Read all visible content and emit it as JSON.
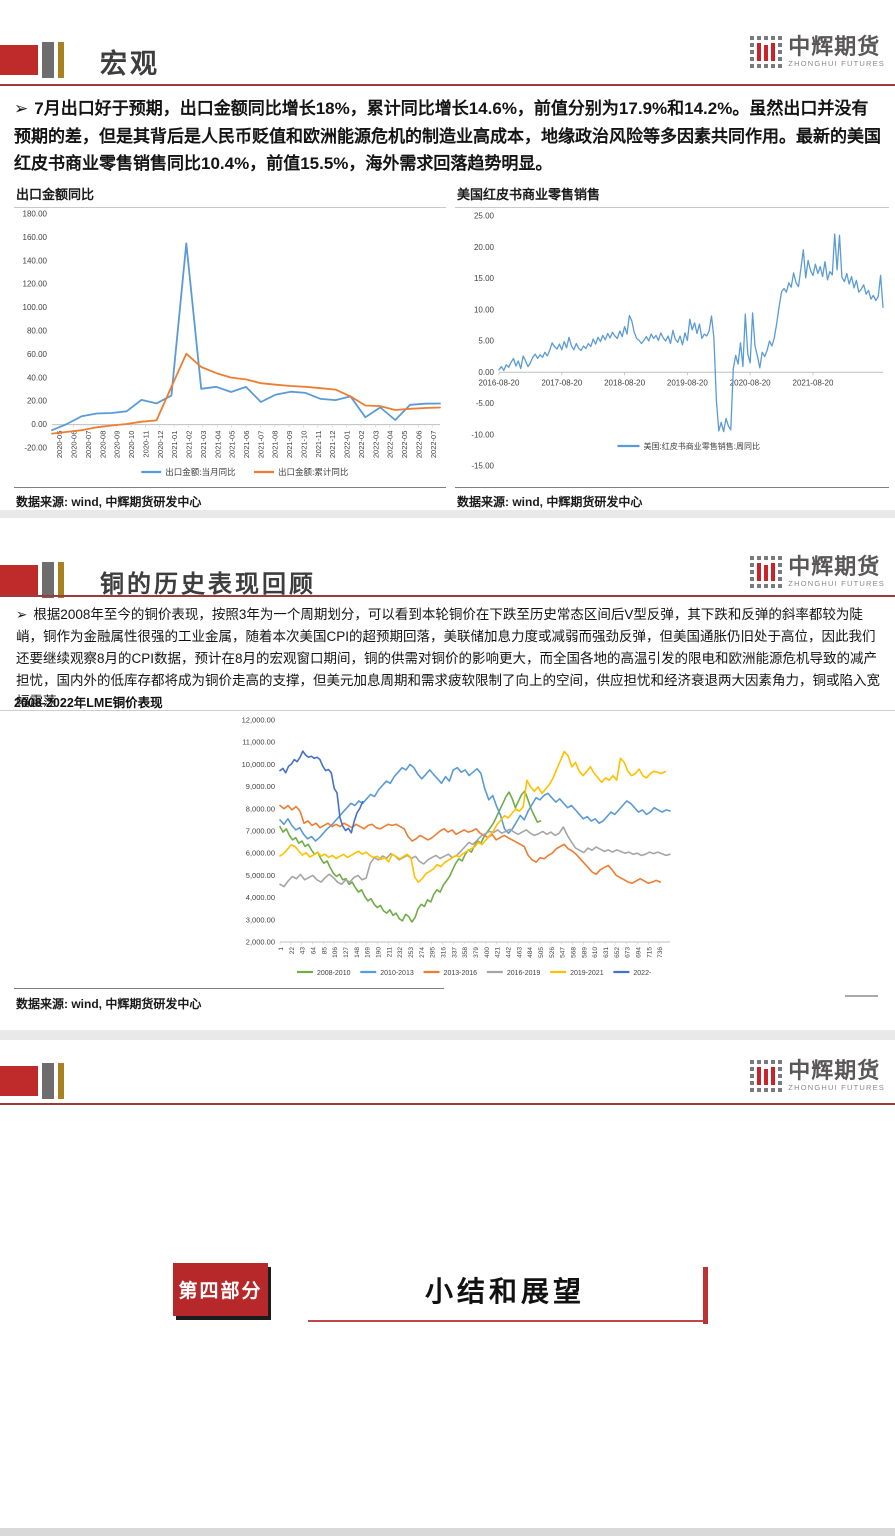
{
  "logo": {
    "cn": "中辉期货",
    "en": "ZHONGHUI FUTURES"
  },
  "slides": {
    "macro": {
      "title": "宏观",
      "marker": "➢",
      "bullet": "7月出口好于预期，出口金额同比增长18%，累计同比增长14.6%，前值分别为17.9%和14.2%。虽然出口并没有预期的差，但是其背后是人民币贬值和欧洲能源危机的制造业高成本，地缘政治风险等多因素共同作用。最新的美国红皮书商业零售销售同比10.4%，前值15.5%，海外需求回落趋势明显。",
      "source": "数据来源: wind, 中辉期货研发中心"
    },
    "copper": {
      "title": "铜的历史表现回顾",
      "marker": "➢",
      "bullet": "根据2008年至今的铜价表现，按照3年为一个周期划分，可以看到本轮铜价在下跌至历史常态区间后V型反弹，其下跌和反弹的斜率都较为陡峭，铜作为金融属性很强的工业金属，随着本次美国CPI的超预期回落，美联储加息力度或减弱而强劲反弹，但美国通胀仍旧处于高位，因此我们还要继续观察8月的CPI数据，预计在8月的宏观窗口期间，铜的供需对铜价的影响更大，而全国各地的高温引发的限电和欧洲能源危机导致的减产担忧，国内外的低库存都将成为铜价走高的支撑，但美元加息周期和需求疲软限制了向上的空间，供应担忧和经济衰退两大因素角力，铜或陷入宽幅震荡",
      "source": "数据来源: wind, 中辉期货研发中心"
    },
    "outlook": {
      "part_label": "第四部分",
      "title": "小结和展望"
    }
  },
  "chart_data": [
    {
      "type": "line",
      "title": "出口金额同比",
      "ylim": [
        -20,
        180
      ],
      "ytick_labels": [
        "180.00",
        "160.00",
        "140.00",
        "120.00",
        "100.00",
        "80.00",
        "60.00",
        "40.00",
        "20.00",
        "0.00",
        "-20.00"
      ],
      "categories": [
        "2020-05",
        "2020-06",
        "2020-07",
        "2020-08",
        "2020-09",
        "2020-10",
        "2020-11",
        "2020-12",
        "2021-01",
        "2021-02",
        "2021-03",
        "2021-04",
        "2021-05",
        "2021-06",
        "2021-07",
        "2021-08",
        "2021-09",
        "2021-10",
        "2021-11",
        "2021-12",
        "2022-01",
        "2022-02",
        "2022-03",
        "2022-04",
        "2022-05",
        "2022-06",
        "2022-07"
      ],
      "series": [
        {
          "name": "出口金额:当月同比",
          "color": "#5b9bd5",
          "values": [
            -4.8,
            0.5,
            7.2,
            9.5,
            9.9,
            11.4,
            21.1,
            18.1,
            24.8,
            154.9,
            30.6,
            32.3,
            27.9,
            32.2,
            19.3,
            25.6,
            28.1,
            27.1,
            22.0,
            20.9,
            24.1,
            6.2,
            14.7,
            3.9,
            16.9,
            17.9,
            18.0
          ]
        },
        {
          "name": "出口金额:累计同比",
          "color": "#ed7d31",
          "values": [
            -7.7,
            -6.2,
            -4.8,
            -2.3,
            -0.8,
            0.5,
            2.5,
            3.6,
            32.2,
            60.6,
            49.2,
            44.0,
            40.2,
            38.6,
            35.4,
            34.1,
            33.0,
            32.3,
            31.1,
            29.9,
            24.1,
            16.3,
            15.8,
            12.5,
            13.5,
            14.2,
            14.6
          ]
        }
      ],
      "legend_position": "bottom",
      "grid": false
    },
    {
      "type": "line",
      "title": "美国红皮书商业零售销售",
      "ylim": [
        -15,
        25
      ],
      "ytick_labels": [
        "25.00",
        "20.00",
        "15.00",
        "10.00",
        "5.00",
        "0.00",
        "-5.00",
        "-10.00",
        "-15.00"
      ],
      "x_tick_labels": [
        "2016-08-20",
        "2017-08-20",
        "2018-08-20",
        "2019-08-20",
        "2020-08-20",
        "2021-08-20"
      ],
      "x_tick_indices": [
        0,
        26,
        52,
        78,
        104,
        130
      ],
      "series": [
        {
          "name": "美国:红皮书商业零售销售:周同比",
          "color": "#5b9bd5",
          "values": [
            0.4,
            0.9,
            0.3,
            1.2,
            0.8,
            1.6,
            2.2,
            1.0,
            1.8,
            0.6,
            2.6,
            1.8,
            0.9,
            1.5,
            2.4,
            2.9,
            2.2,
            2.8,
            2.4,
            3.2,
            2.6,
            3.5,
            4.7,
            4.1,
            3.7,
            4.5,
            3.6,
            4.9,
            3.9,
            5.6,
            4.2,
            3.6,
            4.6,
            3.8,
            3.5,
            4.2,
            3.8,
            4.6,
            4.1,
            5.3,
            4.5,
            5.6,
            4.9,
            5.9,
            5.2,
            6.2,
            5.5,
            6.4,
            5.8,
            5.4,
            6.6,
            5.7,
            7.3,
            6.1,
            9.1,
            8.2,
            6.4,
            5.4,
            5.1,
            4.6,
            5.1,
            5.7,
            5.0,
            6.1,
            5.4,
            5.9,
            5.1,
            6.3,
            5.5,
            5.0,
            5.8,
            4.6,
            6.7,
            5.3,
            4.8,
            5.8,
            4.4,
            6.3,
            5.1,
            8.5,
            6.8,
            7.9,
            6.2,
            7.7,
            5.4,
            6.1,
            5.8,
            6.6,
            9.0,
            5.5,
            -4.5,
            -9.4,
            -8.0,
            -9.5,
            -7.4,
            -8.6,
            -9.2,
            0.6,
            2.7,
            1.3,
            4.7,
            0.9,
            9.3,
            2.9,
            1.5,
            9.5,
            4.2,
            2.6,
            0.7,
            3.2,
            2.5,
            3.5,
            5.0,
            4.2,
            5.5,
            7.8,
            10.6,
            12.9,
            13.4,
            12.8,
            14.3,
            13.6,
            15.9,
            14.3,
            13.7,
            16.6,
            19.6,
            15.1,
            17.9,
            16.3,
            15.5,
            17.3,
            15.8,
            16.9,
            15.3,
            17.7,
            14.8,
            16.1,
            15.6,
            22.1,
            16.4,
            21.9,
            15.2,
            14.5,
            15.8,
            14.1,
            15.3,
            13.5,
            14.7,
            12.8,
            13.3,
            14.0,
            12.5,
            13.1,
            11.7,
            12.3,
            11.5,
            12.1,
            15.5,
            10.4
          ]
        }
      ],
      "legend_position": "inside-bottom",
      "grid": false
    },
    {
      "type": "line",
      "title": "2008-2022年LME铜价表现",
      "ylim": [
        2000,
        12000
      ],
      "ytick_labels": [
        "12,000.00",
        "11,000.00",
        "10,000.00",
        "9,000.00",
        "8,000.00",
        "7,000.00",
        "6,000.00",
        "5,000.00",
        "4,000.00",
        "3,000.00",
        "2,000.00"
      ],
      "x_tick_labels": [
        "1",
        "22",
        "43",
        "64",
        "85",
        "106",
        "127",
        "148",
        "169",
        "190",
        "211",
        "232",
        "253",
        "274",
        "295",
        "316",
        "337",
        "358",
        "379",
        "400",
        "421",
        "442",
        "463",
        "484",
        "505",
        "526",
        "547",
        "568",
        "589",
        "610",
        "631",
        "652",
        "673",
        "694",
        "715",
        "736"
      ],
      "x_cat_count": 756,
      "series": [
        {
          "name": "2008-2010",
          "color": "#70ad47",
          "span": 0.668,
          "values": [
            7200,
            6950,
            7100,
            6800,
            6600,
            6700,
            6450,
            6550,
            6300,
            6400,
            6150,
            5950,
            6050,
            5750,
            5550,
            5650,
            5350,
            5100,
            4950,
            5050,
            4800,
            4850,
            4600,
            4700,
            4450,
            4250,
            4350,
            4050,
            3850,
            3950,
            3700,
            3550,
            3650,
            3400,
            3300,
            3450,
            3200,
            3300,
            3050,
            2950,
            3250,
            3150,
            2900,
            3100,
            3500,
            3700,
            3600,
            3900,
            3800,
            4150,
            4350,
            4250,
            4550,
            4750,
            4950,
            5250,
            5550,
            5750,
            5650,
            5950,
            6150,
            6050,
            6350,
            6550,
            6450,
            6750,
            6950,
            7150,
            7350,
            7650,
            7950,
            8250,
            8550,
            8750,
            8450,
            8050,
            8350,
            8650,
            8800,
            8400,
            8000,
            7700,
            7400,
            7450
          ]
        },
        {
          "name": "2010-2013",
          "color": "#5b9bd5",
          "span": 1.0,
          "values": [
            7500,
            7300,
            7550,
            7250,
            7050,
            7150,
            6850,
            6650,
            6750,
            6550,
            6700,
            6900,
            7100,
            7250,
            7450,
            7650,
            7850,
            8050,
            8250,
            8150,
            8350,
            8250,
            8450,
            8650,
            8550,
            8850,
            9050,
            9250,
            9150,
            9450,
            9650,
            9850,
            9750,
            10000,
            9850,
            9550,
            9350,
            9550,
            9750,
            9550,
            9350,
            9150,
            9450,
            9250,
            9750,
            9850,
            9650,
            9750,
            9500,
            9650,
            9800,
            9600,
            8900,
            8400,
            8600,
            8100,
            7700,
            7100,
            6900,
            7100,
            7400,
            7700,
            7500,
            7900,
            8200,
            8500,
            8400,
            8600,
            8700,
            8500,
            8300,
            8450,
            8250,
            8050,
            8150,
            7950,
            7750,
            7550,
            7650,
            7450,
            7550,
            7350,
            7450,
            7650,
            7850,
            7750,
            7950,
            8150,
            8350,
            8250,
            8050,
            7850,
            7950,
            7750,
            7850,
            8050,
            7950,
            7850,
            7950,
            7900
          ]
        },
        {
          "name": "2013-2016",
          "color": "#ed7d31",
          "span": 0.975,
          "values": [
            8150,
            8000,
            8150,
            7950,
            8100,
            7900,
            7350,
            7450,
            7250,
            7350,
            7150,
            7250,
            7350,
            7200,
            7300,
            7200,
            7350,
            7250,
            7150,
            7300,
            7200,
            7100,
            7250,
            7300,
            7150,
            7100,
            7200,
            7300,
            7250,
            7300,
            7200,
            7100,
            6750,
            6550,
            6650,
            6800,
            6700,
            6600,
            6700,
            6850,
            7000,
            7100,
            6950,
            7050,
            6850,
            6950,
            7050,
            6950,
            7000,
            7100,
            6900,
            6800,
            6700,
            6850,
            6600,
            6700,
            6800,
            6700,
            6600,
            6500,
            6400,
            6300,
            5900,
            5700,
            5600,
            5800,
            5750,
            5900,
            6000,
            6200,
            6300,
            6400,
            6200,
            6100,
            5950,
            5750,
            5550,
            5350,
            5150,
            5050,
            5250,
            5350,
            5450,
            5250,
            5000,
            4900,
            4800,
            4700,
            4650,
            4750,
            4850,
            4750,
            4650,
            4700,
            4780,
            4700
          ]
        },
        {
          "name": "2016-2019",
          "color": "#a5a5a5",
          "span": 1.0,
          "values": [
            4600,
            4500,
            4750,
            4950,
            4850,
            5050,
            4800,
            4900,
            5000,
            4800,
            4700,
            4900,
            5050,
            4900,
            4700,
            4600,
            4800,
            4700,
            4900,
            5000,
            4800,
            4880,
            5550,
            5800,
            5700,
            5880,
            5780,
            5980,
            5880,
            5700,
            5800,
            5900,
            5760,
            5860,
            5620,
            5520,
            5700,
            5800,
            5900,
            5760,
            5860,
            5950,
            5800,
            5900,
            6080,
            6280,
            6480,
            6400,
            6580,
            6780,
            6880,
            6980,
            6930,
            7050,
            6900,
            6980,
            7080,
            6950,
            6850,
            6950,
            7050,
            6900,
            6800,
            6880,
            6980,
            6850,
            6950,
            6800,
            6900,
            7180,
            6800,
            6500,
            6230,
            6130,
            6030,
            6230,
            6130,
            6280,
            6180,
            6080,
            6150,
            6050,
            6150,
            6080,
            6000,
            6050,
            5950,
            6000,
            5900,
            5950,
            6050,
            5980,
            6050,
            5980,
            5900,
            5950
          ]
        },
        {
          "name": "2019-2021",
          "color": "#ffc000",
          "span": 0.988,
          "values": [
            5880,
            5980,
            6180,
            6380,
            6300,
            6100,
            5920,
            6020,
            5830,
            5930,
            6030,
            5870,
            5960,
            5810,
            5900,
            5760,
            5860,
            5950,
            5810,
            5900,
            6000,
            6090,
            5950,
            6050,
            5900,
            5810,
            5860,
            5710,
            5810,
            5610,
            5950,
            5850,
            5750,
            5850,
            5950,
            5800,
            4920,
            4700,
            4850,
            5080,
            5180,
            5290,
            5480,
            5390,
            5580,
            5680,
            5790,
            5890,
            5840,
            5990,
            6090,
            6190,
            6290,
            6490,
            6390,
            6590,
            6790,
            6990,
            7290,
            7490,
            7690,
            7590,
            7790,
            7990,
            7890,
            8090,
            9280,
            8990,
            8790,
            8990,
            8690,
            8890,
            9090,
            9390,
            9790,
            10190,
            10580,
            10390,
            9890,
            10090,
            9690,
            9490,
            9690,
            9890,
            9590,
            9390,
            9190,
            9390,
            9290,
            9490,
            9290,
            10280,
            10090,
            9690,
            9490,
            9590,
            9790,
            9490,
            9390,
            9590,
            9690,
            9640,
            9590,
            9680
          ]
        },
        {
          "name": "2022-",
          "color": "#4472c4",
          "span": 0.212,
          "values": [
            9720,
            9820,
            9620,
            9920,
            10020,
            10220,
            10120,
            10320,
            10600,
            10420,
            10320,
            10370,
            10270,
            10320,
            10220,
            9920,
            9720,
            9770,
            9620,
            8920,
            8720,
            7620,
            7220,
            7020,
            7120,
            6920,
            7420,
            7820,
            8020,
            8320
          ]
        }
      ],
      "legend_position": "bottom",
      "grid": false
    }
  ]
}
